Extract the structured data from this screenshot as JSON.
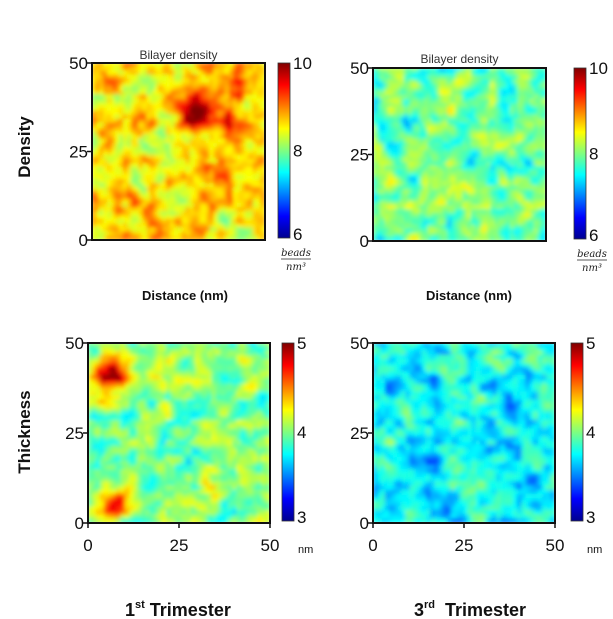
{
  "labels": {
    "row_density": "Density",
    "row_thickness": "Thickness",
    "col_first": "1",
    "col_first_sup": "st",
    "col_first_rest": " Trimester",
    "col_third": "3",
    "col_third_sup": "rd",
    "col_third_rest": "  Trimester"
  },
  "chart_data": [
    {
      "type": "heatmap",
      "title": "Bilayer density",
      "xlabel": "Distance (nm)",
      "ylabel": "",
      "xlim": [
        0,
        50
      ],
      "ylim": [
        0,
        50
      ],
      "yticks": [
        "0",
        "25",
        "50"
      ],
      "colorbar": {
        "min": 6,
        "max": 10,
        "ticks": [
          "6",
          "8",
          "10"
        ],
        "unit_num": "beads",
        "unit_den": "nm³"
      },
      "mean_value": 8.6,
      "hotspots": [
        {
          "x": 31,
          "y": 36,
          "value": 10,
          "r": 3.5
        },
        {
          "x": 39,
          "y": 33,
          "value": 9.8,
          "r": 2.5
        },
        {
          "x": 43,
          "y": 42,
          "value": 9.6,
          "r": 2.0
        }
      ],
      "colormap": "jet"
    },
    {
      "type": "heatmap",
      "title": "Bilayer density",
      "xlabel": "Distance (nm)",
      "ylabel": "",
      "xlim": [
        0,
        50
      ],
      "ylim": [
        0,
        50
      ],
      "yticks": [
        "0",
        "25",
        "50"
      ],
      "colorbar": {
        "min": 6,
        "max": 10,
        "ticks": [
          "6",
          "8",
          "10"
        ],
        "unit_num": "beads",
        "unit_den": "nm³"
      },
      "mean_value": 7.9,
      "hotspots": [],
      "colormap": "jet"
    },
    {
      "type": "heatmap",
      "title": "",
      "xlabel": "",
      "ylabel": "",
      "xlim": [
        0,
        50
      ],
      "ylim": [
        0,
        50
      ],
      "xticks": [
        "0",
        "25",
        "50"
      ],
      "yticks": [
        "0",
        "25",
        "50"
      ],
      "colorbar": {
        "min": 3,
        "max": 5,
        "ticks": [
          "3",
          "4",
          "5"
        ],
        "unit": "nm"
      },
      "mean_value": 4.0,
      "hotspots": [
        {
          "x": 6,
          "y": 42,
          "value": 5,
          "r": 3.5
        },
        {
          "x": 8,
          "y": 5,
          "value": 5,
          "r": 2.5
        }
      ],
      "colormap": "jet"
    },
    {
      "type": "heatmap",
      "title": "",
      "xlabel": "",
      "ylabel": "",
      "xlim": [
        0,
        50
      ],
      "ylim": [
        0,
        50
      ],
      "xticks": [
        "0",
        "25",
        "50"
      ],
      "yticks": [
        "0",
        "25",
        "50"
      ],
      "colorbar": {
        "min": 3,
        "max": 5,
        "ticks": [
          "3",
          "4",
          "5"
        ],
        "unit": "nm"
      },
      "mean_value": 3.75,
      "hotspots": [],
      "colormap": "jet"
    }
  ]
}
